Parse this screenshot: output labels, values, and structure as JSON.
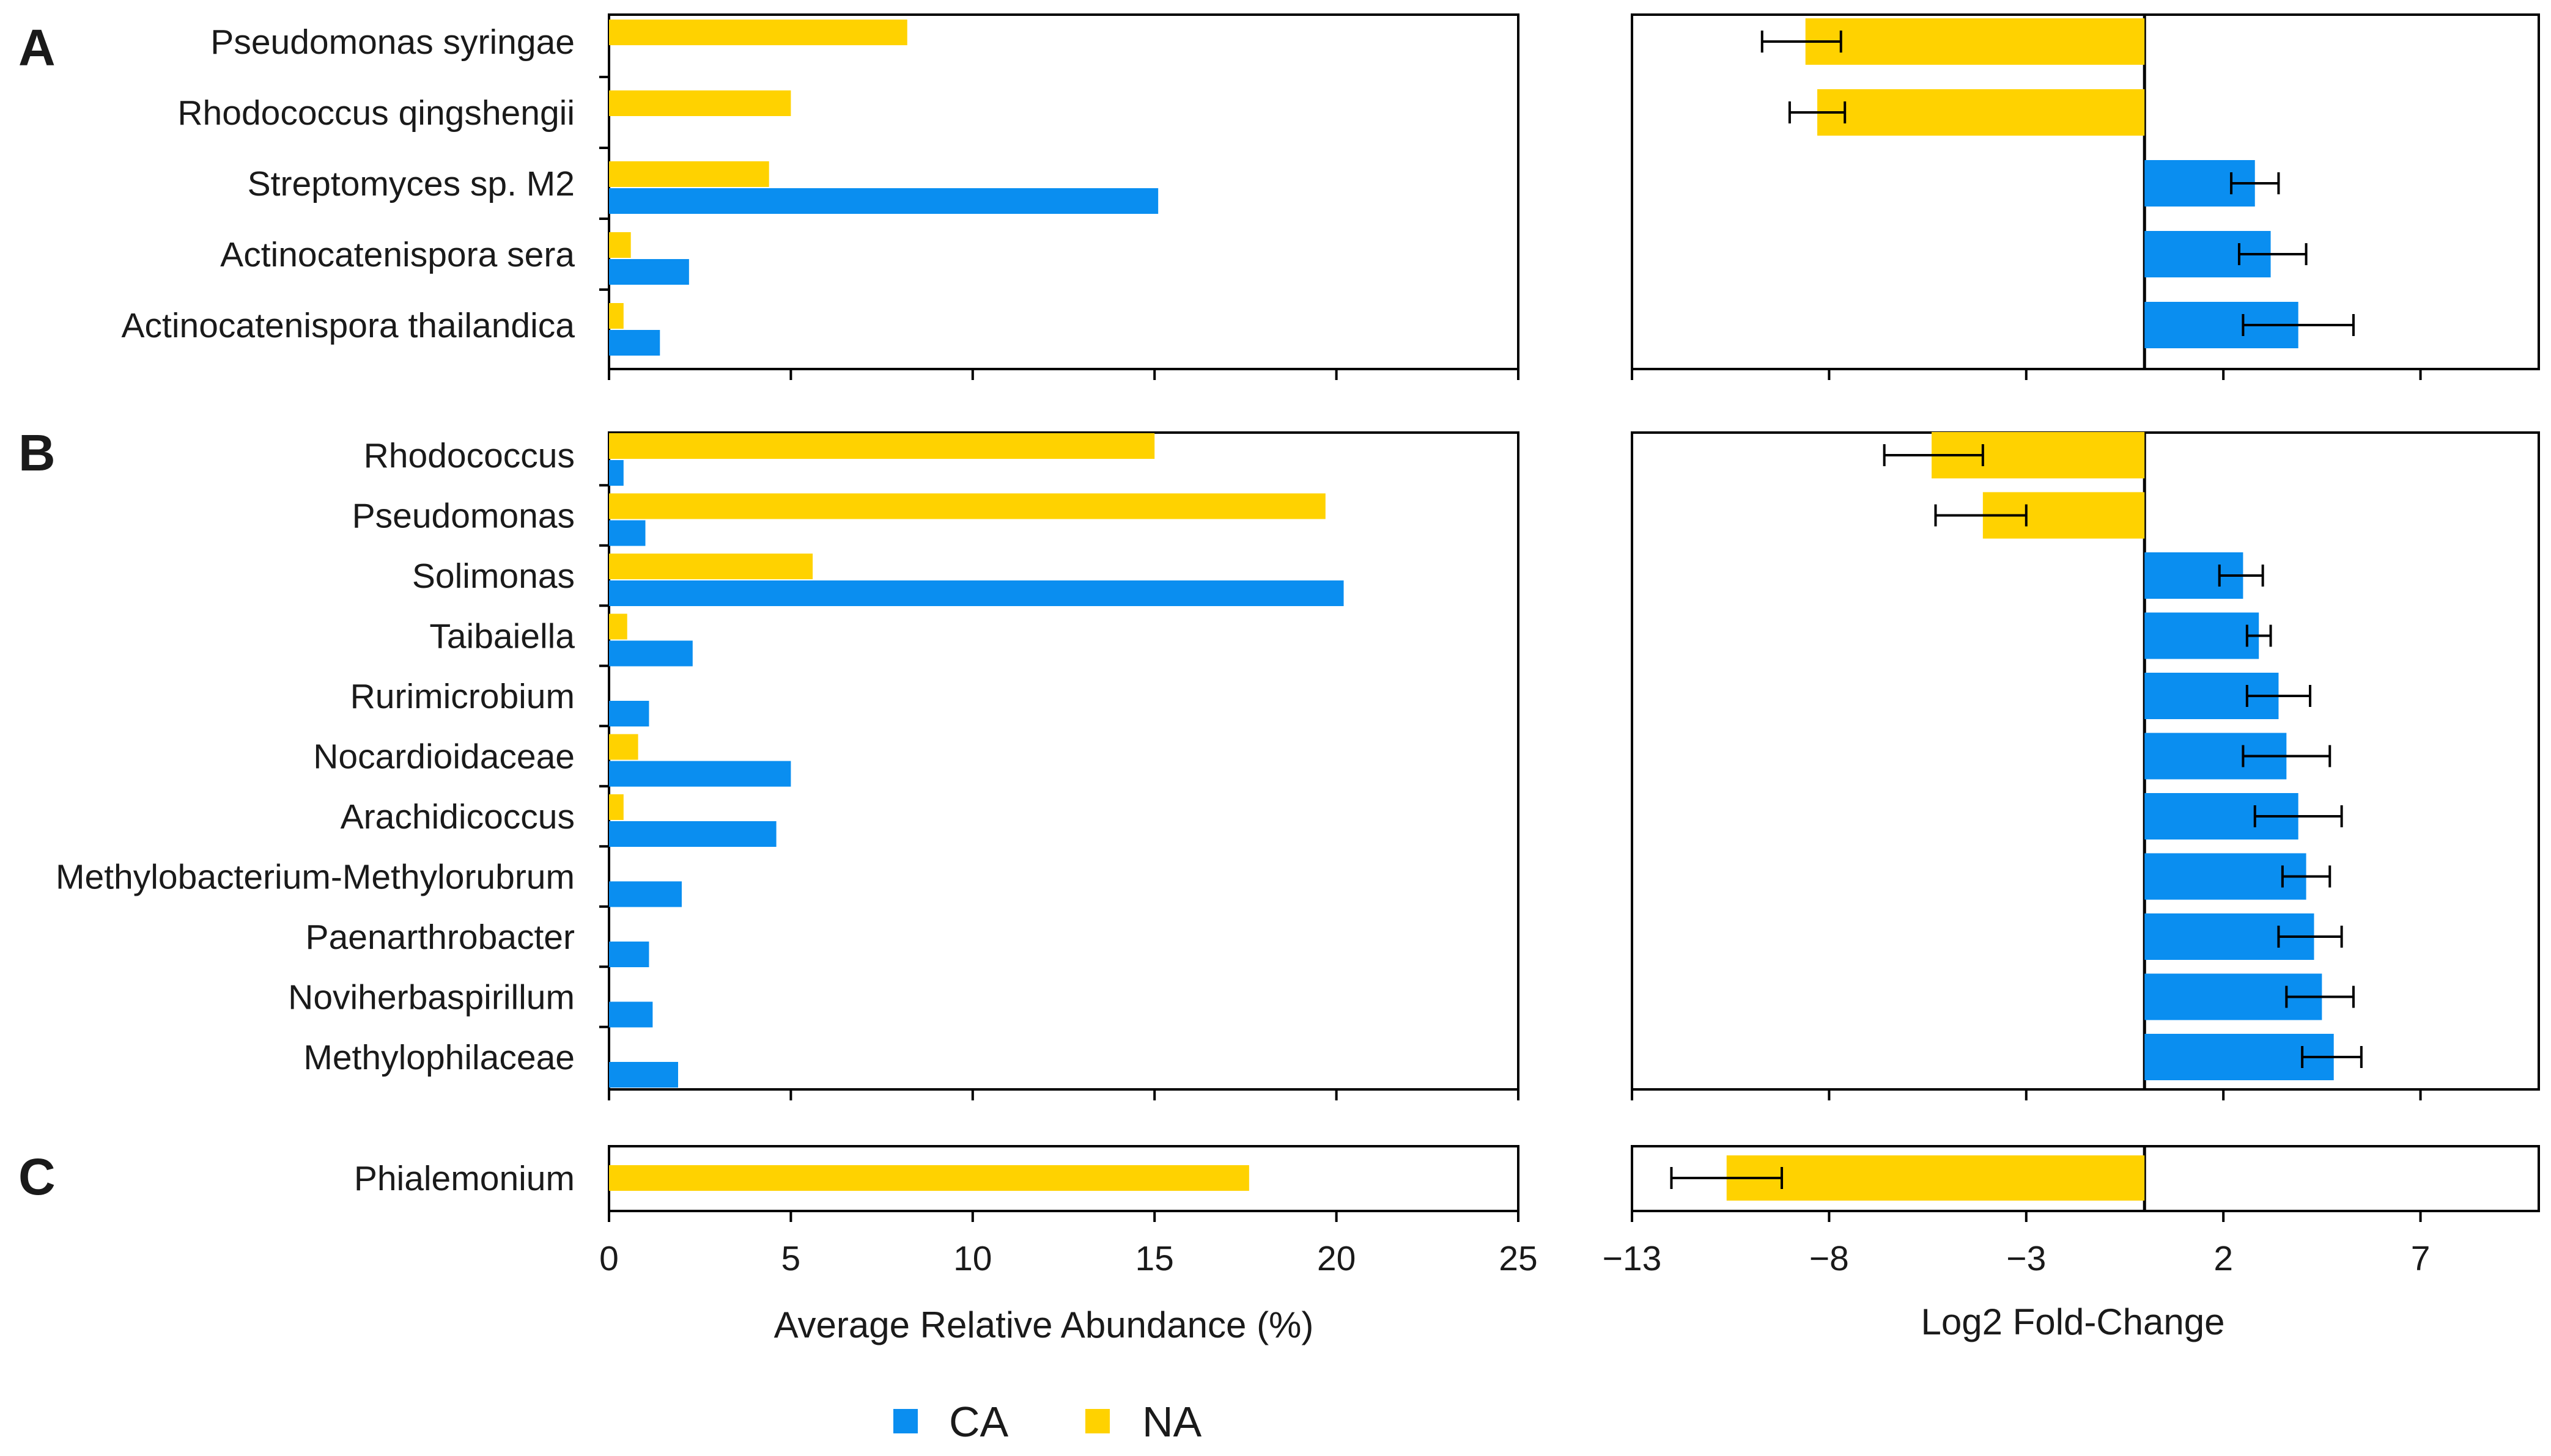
{
  "colors": {
    "CA": "#0a8ef0",
    "NA": "#ffd200"
  },
  "legend": [
    {
      "key": "CA",
      "label": "CA"
    },
    {
      "key": "NA",
      "label": "NA"
    }
  ],
  "chart_data": [
    {
      "type": "bar",
      "title": "Average Relative Abundance (%)",
      "xlabel": "Average Relative Abundance (%)",
      "xlim": [
        0,
        25
      ],
      "xticks": [
        0,
        5,
        10,
        15,
        20,
        25
      ],
      "orientation": "horizontal",
      "panels": [
        {
          "letter": "A",
          "categories": [
            "Pseudomonas syringae",
            "Rhodococcus qingshengii",
            "Streptomyces sp. M2",
            "Actinocatenispora sera",
            "Actinocatenispora thailandica"
          ],
          "series": [
            {
              "name": "NA",
              "values": [
                8.2,
                5.0,
                4.4,
                0.6,
                0.4
              ]
            },
            {
              "name": "CA",
              "values": [
                0,
                0,
                15.1,
                2.2,
                1.4
              ]
            }
          ]
        },
        {
          "letter": "B",
          "categories": [
            "Rhodococcus",
            "Pseudomonas",
            "Solimonas",
            "Taibaiella",
            "Rurimicrobium",
            "Nocardioidaceae",
            "Arachidicoccus",
            "Methylobacterium-Methylorubrum",
            "Paenarthrobacter",
            "Noviherbaspirillum",
            "Methylophilaceae"
          ],
          "series": [
            {
              "name": "NA",
              "values": [
                15.0,
                19.7,
                5.6,
                0.5,
                0,
                0.8,
                0.4,
                0,
                0,
                0,
                0
              ]
            },
            {
              "name": "CA",
              "values": [
                0.4,
                1.0,
                20.2,
                2.3,
                1.1,
                5.0,
                4.6,
                2.0,
                1.1,
                1.2,
                1.9
              ]
            }
          ]
        },
        {
          "letter": "C",
          "categories": [
            "Phialemonium"
          ],
          "series": [
            {
              "name": "NA",
              "values": [
                17.6
              ]
            },
            {
              "name": "CA",
              "values": [
                0
              ]
            }
          ]
        }
      ]
    },
    {
      "type": "bar",
      "title": "Log2 Fold-Change",
      "xlabel": "Log2 Fold-Change",
      "xlim": [
        -13,
        10
      ],
      "xticks": [
        -13,
        -8,
        -3,
        2,
        7
      ],
      "tick_labels": [
        "−13",
        "−8",
        "−3",
        "2",
        "7"
      ],
      "orientation": "horizontal",
      "panels": [
        {
          "letter": "A",
          "categories": [
            "Pseudomonas syringae",
            "Rhodococcus qingshengii",
            "Streptomyces sp. M2",
            "Actinocatenispora sera",
            "Actinocatenispora thailandica"
          ],
          "values": [
            -8.6,
            -8.3,
            2.8,
            3.2,
            3.9
          ],
          "error_low": [
            -9.7,
            -9.0,
            2.2,
            2.4,
            2.5
          ],
          "error_high": [
            -7.7,
            -7.6,
            3.4,
            4.1,
            5.3
          ],
          "group": [
            "NA",
            "NA",
            "CA",
            "CA",
            "CA"
          ]
        },
        {
          "letter": "B",
          "categories": [
            "Rhodococcus",
            "Pseudomonas",
            "Solimonas",
            "Taibaiella",
            "Rurimicrobium",
            "Nocardioidaceae",
            "Arachidicoccus",
            "Methylobacterium-Methylorubrum",
            "Paenarthrobacter",
            "Noviherbaspirillum",
            "Methylophilaceae"
          ],
          "values": [
            -5.4,
            -4.1,
            2.5,
            2.9,
            3.4,
            3.6,
            3.9,
            4.1,
            4.3,
            4.5,
            4.8
          ],
          "error_low": [
            -6.6,
            -5.3,
            1.9,
            2.6,
            2.6,
            2.5,
            2.8,
            3.5,
            3.4,
            3.6,
            4.0
          ],
          "error_high": [
            -4.1,
            -3.0,
            3.0,
            3.2,
            4.2,
            4.7,
            5.0,
            4.7,
            5.0,
            5.3,
            5.5
          ],
          "group": [
            "NA",
            "NA",
            "CA",
            "CA",
            "CA",
            "CA",
            "CA",
            "CA",
            "CA",
            "CA",
            "CA"
          ]
        },
        {
          "letter": "C",
          "categories": [
            "Phialemonium"
          ],
          "values": [
            -10.6
          ],
          "error_low": [
            -12.0
          ],
          "error_high": [
            -9.2
          ],
          "group": [
            "NA"
          ]
        }
      ]
    }
  ]
}
